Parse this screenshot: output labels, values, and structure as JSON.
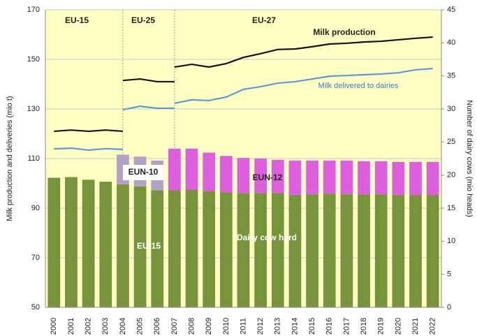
{
  "chart_data": {
    "type": "bar-line",
    "y_label": "Milk production and deliveries (mio t)",
    "y2_label": "Number of dairy cows (mio heads)",
    "ylim": [
      50,
      170
    ],
    "yticks": [
      50,
      70,
      90,
      110,
      130,
      150,
      170
    ],
    "y2lim": [
      0,
      45
    ],
    "y2ticks": [
      0,
      5,
      10,
      15,
      20,
      25,
      30,
      35,
      40,
      45
    ],
    "grid": true,
    "background": "#ffffc4",
    "annotations": [
      "EU-15",
      "EU-25",
      "EU-27",
      "Dairy  cow herd"
    ],
    "categories": [
      "2000",
      "2001",
      "2002",
      "2003",
      "2004",
      "2005",
      "2006",
      "2007",
      "2008",
      "2009",
      "2010",
      "2011",
      "2012",
      "2013",
      "2014",
      "2015",
      "2016",
      "2017",
      "2018",
      "2019",
      "2020",
      "2021",
      "2022"
    ],
    "series": [
      {
        "name": "EU-15",
        "color": "#77933c",
        "axis": "y2",
        "values": [
          19.6,
          19.7,
          19.3,
          19.0,
          18.6,
          18.3,
          17.7,
          17.7,
          17.8,
          17.6,
          17.4,
          17.3,
          17.3,
          17.3,
          17.0,
          17.1,
          17.2,
          17.1,
          17.1,
          17.1,
          17.0,
          17.0,
          17.0
        ]
      },
      {
        "name": "EUN-10",
        "color": "#b3a2c7",
        "axis": "y2",
        "values": [
          null,
          null,
          null,
          null,
          4.5,
          4.5,
          4.5,
          null,
          null,
          null,
          null,
          null,
          null,
          null,
          null,
          null,
          null,
          null,
          null,
          null,
          null,
          null,
          null
        ]
      },
      {
        "name": "EUN-12",
        "color": "#dd5fdd",
        "axis": "y2",
        "values": [
          null,
          null,
          null,
          null,
          null,
          null,
          null,
          6.3,
          6.2,
          5.8,
          5.5,
          5.3,
          5.2,
          5.0,
          5.2,
          5.1,
          5.0,
          5.1,
          5.0,
          5.0,
          5.0,
          5.0,
          5.0
        ]
      }
    ],
    "lines": [
      {
        "name": "Milk production",
        "color": "#111111",
        "segments": [
          [
            121.0,
            121.5,
            121.0,
            121.5,
            121.0,
            null,
            null,
            null,
            null,
            null,
            null,
            null,
            null,
            null,
            null,
            null,
            null,
            null,
            null,
            null,
            null,
            null,
            null
          ],
          [
            null,
            null,
            null,
            null,
            141.5,
            142.1,
            141.0,
            141.0,
            null,
            null,
            null,
            null,
            null,
            null,
            null,
            null,
            null,
            null,
            null,
            null,
            null,
            null,
            null
          ],
          [
            null,
            null,
            null,
            null,
            null,
            null,
            null,
            146.9,
            148.0,
            146.9,
            148.3,
            150.8,
            152.3,
            154.0,
            154.2,
            155.1,
            156.2,
            156.5,
            157.0,
            157.3,
            157.9,
            158.5,
            159.0
          ]
        ]
      },
      {
        "name": "Milk delivered to dairies",
        "color": "#5b9bd5",
        "segments": [
          [
            113.9,
            114.2,
            113.4,
            114.0,
            113.7,
            null,
            null,
            null,
            null,
            null,
            null,
            null,
            null,
            null,
            null,
            null,
            null,
            null,
            null,
            null,
            null,
            null,
            null
          ],
          [
            null,
            null,
            null,
            null,
            129.7,
            131.1,
            130.3,
            130.3,
            null,
            null,
            null,
            null,
            null,
            null,
            null,
            null,
            null,
            null,
            null,
            null,
            null,
            null,
            null
          ],
          [
            null,
            null,
            null,
            null,
            null,
            null,
            null,
            132.3,
            133.7,
            133.4,
            134.8,
            137.9,
            139.0,
            140.4,
            141.0,
            142.1,
            143.2,
            143.5,
            143.8,
            144.1,
            144.6,
            145.8,
            146.3
          ]
        ]
      }
    ]
  }
}
